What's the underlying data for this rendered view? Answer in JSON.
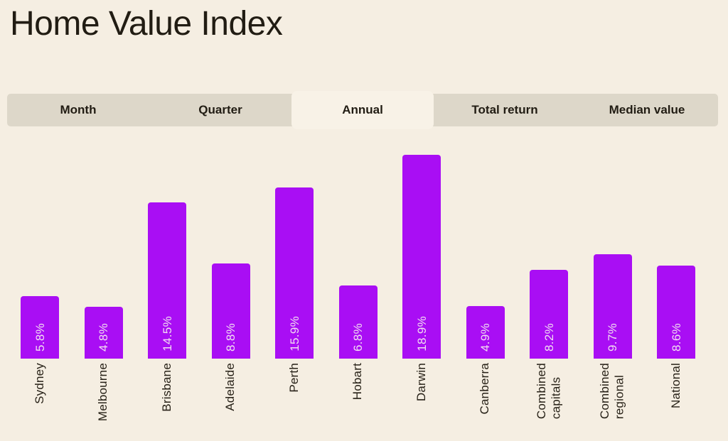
{
  "header": {
    "title": "Home Value Index"
  },
  "colors": {
    "page_background": "#f5eee2",
    "tab_bar_background": "#ddd7c9",
    "active_tab_background": "#f8f2e7",
    "bar_color": "#a90ef4",
    "value_label_color": "#f2ddf1",
    "text_color": "#211c13"
  },
  "tabs": {
    "items": [
      {
        "label": "Month",
        "active": false
      },
      {
        "label": "Quarter",
        "active": false
      },
      {
        "label": "Annual",
        "active": true
      },
      {
        "label": "Total return",
        "active": false
      },
      {
        "label": "Median value",
        "active": false
      }
    ]
  },
  "chart_data": {
    "type": "bar",
    "title": "Home Value Index",
    "selected_tab": "Annual",
    "categories": [
      "Sydney",
      "Melbourne",
      "Brisbane",
      "Adelaide",
      "Perth",
      "Hobart",
      "Darwin",
      "Canberra",
      "Combined\ncapitals",
      "Combined\nregional",
      "National"
    ],
    "values": [
      5.8,
      4.8,
      14.5,
      8.8,
      15.9,
      6.8,
      18.9,
      4.9,
      8.2,
      9.7,
      8.6
    ],
    "value_labels": [
      "5.8%",
      "4.8%",
      "14.5%",
      "8.8%",
      "15.9%",
      "6.8%",
      "18.9%",
      "4.9%",
      "8.2%",
      "9.7%",
      "8.6%"
    ],
    "ylim": [
      0,
      18.9
    ],
    "xlabel": "",
    "ylabel": "",
    "grid": false,
    "legend_position": "none",
    "bar_label_rotation": 90,
    "category_label_rotation": 90
  }
}
